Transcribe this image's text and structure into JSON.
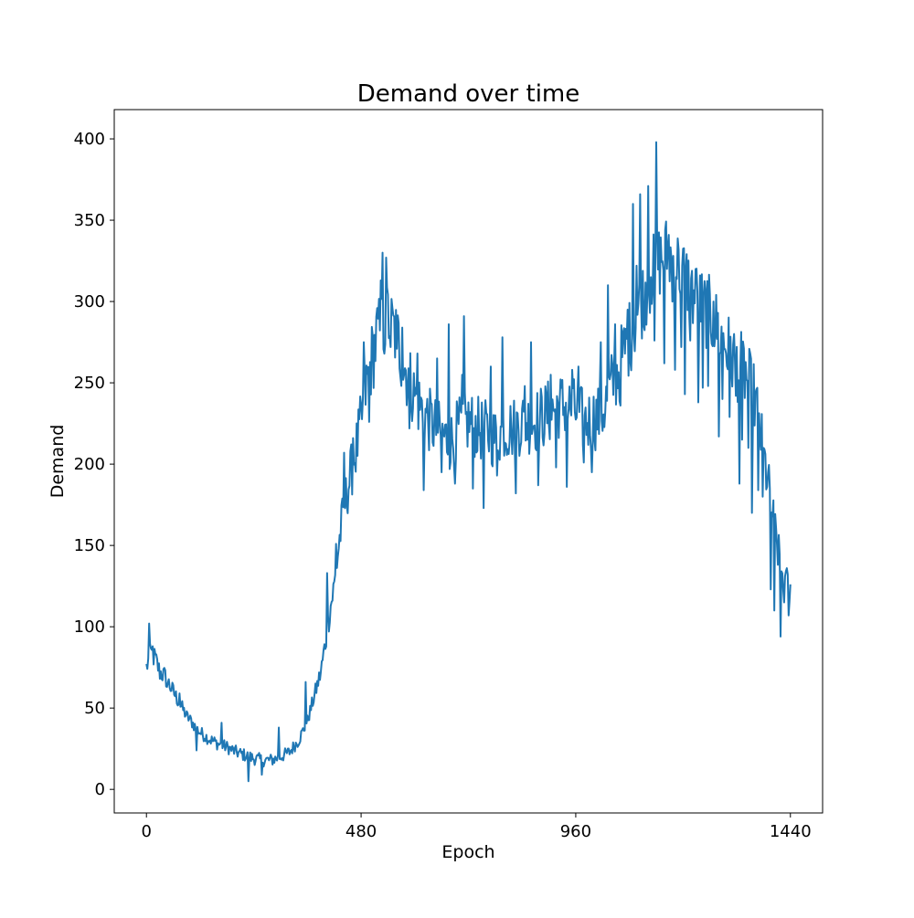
{
  "chart_data": {
    "type": "line",
    "title": "Demand over time",
    "xlabel": "Epoch",
    "ylabel": "Demand",
    "xlim": [
      -72,
      1512
    ],
    "ylim": [
      -14.5,
      418
    ],
    "xticks": [
      0,
      480,
      960,
      1440
    ],
    "yticks": [
      0,
      50,
      100,
      150,
      200,
      250,
      300,
      350,
      400
    ],
    "xtick_labels": [
      "0",
      "480",
      "960",
      "1440"
    ],
    "ytick_labels": [
      "0",
      "50",
      "100",
      "150",
      "200",
      "250",
      "300",
      "350",
      "400"
    ],
    "grid": false,
    "legend": "none",
    "series": [
      {
        "color": "#1f77b4",
        "anchors": [
          [
            0,
            75
          ],
          [
            10,
            84
          ],
          [
            20,
            80
          ],
          [
            30,
            72
          ],
          [
            40,
            70
          ],
          [
            50,
            65
          ],
          [
            60,
            60
          ],
          [
            70,
            55
          ],
          [
            80,
            50
          ],
          [
            90,
            45
          ],
          [
            100,
            42
          ],
          [
            110,
            38
          ],
          [
            120,
            35
          ],
          [
            140,
            31
          ],
          [
            160,
            28
          ],
          [
            180,
            26
          ],
          [
            200,
            23
          ],
          [
            220,
            21
          ],
          [
            240,
            19
          ],
          [
            260,
            18
          ],
          [
            280,
            18
          ],
          [
            300,
            20
          ],
          [
            320,
            23
          ],
          [
            340,
            30
          ],
          [
            360,
            42
          ],
          [
            370,
            52
          ],
          [
            380,
            62
          ],
          [
            390,
            72
          ],
          [
            400,
            90
          ],
          [
            410,
            110
          ],
          [
            420,
            125
          ],
          [
            430,
            150
          ],
          [
            440,
            170
          ],
          [
            450,
            185
          ],
          [
            460,
            198
          ],
          [
            470,
            210
          ],
          [
            480,
            225
          ],
          [
            490,
            245
          ],
          [
            500,
            260
          ],
          [
            510,
            272
          ],
          [
            520,
            280
          ],
          [
            530,
            285
          ],
          [
            540,
            290
          ],
          [
            550,
            283
          ],
          [
            560,
            278
          ],
          [
            570,
            268
          ],
          [
            580,
            258
          ],
          [
            590,
            250
          ],
          [
            600,
            242
          ],
          [
            620,
            232
          ],
          [
            640,
            224
          ],
          [
            660,
            218
          ],
          [
            680,
            214
          ],
          [
            700,
            222
          ],
          [
            720,
            226
          ],
          [
            740,
            222
          ],
          [
            760,
            220
          ],
          [
            780,
            216
          ],
          [
            800,
            222
          ],
          [
            820,
            222
          ],
          [
            840,
            226
          ],
          [
            860,
            226
          ],
          [
            880,
            228
          ],
          [
            900,
            232
          ],
          [
            920,
            236
          ],
          [
            940,
            236
          ],
          [
            960,
            232
          ],
          [
            980,
            226
          ],
          [
            1000,
            228
          ],
          [
            1020,
            232
          ],
          [
            1040,
            248
          ],
          [
            1060,
            262
          ],
          [
            1080,
            278
          ],
          [
            1100,
            295
          ],
          [
            1120,
            310
          ],
          [
            1140,
            322
          ],
          [
            1160,
            330
          ],
          [
            1180,
            325
          ],
          [
            1200,
            318
          ],
          [
            1220,
            305
          ],
          [
            1240,
            298
          ],
          [
            1260,
            292
          ],
          [
            1280,
            282
          ],
          [
            1300,
            270
          ],
          [
            1320,
            262
          ],
          [
            1340,
            255
          ],
          [
            1360,
            240
          ],
          [
            1370,
            225
          ],
          [
            1380,
            205
          ],
          [
            1390,
            188
          ],
          [
            1400,
            170
          ],
          [
            1410,
            150
          ],
          [
            1420,
            135
          ],
          [
            1430,
            125
          ],
          [
            1440,
            120
          ]
        ],
        "spikes": [
          [
            6,
            102
          ],
          [
            14,
            88
          ],
          [
            46,
            63
          ],
          [
            74,
            59
          ],
          [
            112,
            24
          ],
          [
            168,
            41
          ],
          [
            228,
            5
          ],
          [
            258,
            9
          ],
          [
            296,
            38
          ],
          [
            356,
            66
          ],
          [
            404,
            133
          ],
          [
            424,
            151
          ],
          [
            442,
            207
          ],
          [
            462,
            216
          ],
          [
            486,
            275
          ],
          [
            498,
            226
          ],
          [
            516,
            296
          ],
          [
            524,
            313
          ],
          [
            528,
            330
          ],
          [
            536,
            327
          ],
          [
            546,
            272
          ],
          [
            560,
            271
          ],
          [
            572,
            284
          ],
          [
            588,
            222
          ],
          [
            606,
            268
          ],
          [
            620,
            184
          ],
          [
            650,
            265
          ],
          [
            660,
            195
          ],
          [
            676,
            286
          ],
          [
            690,
            188
          ],
          [
            706,
            255
          ],
          [
            710,
            291
          ],
          [
            730,
            185
          ],
          [
            754,
            173
          ],
          [
            770,
            260
          ],
          [
            784,
            193
          ],
          [
            796,
            278
          ],
          [
            816,
            220
          ],
          [
            826,
            182
          ],
          [
            846,
            248
          ],
          [
            860,
            275
          ],
          [
            876,
            187
          ],
          [
            904,
            255
          ],
          [
            916,
            198
          ],
          [
            940,
            186
          ],
          [
            952,
            258
          ],
          [
            966,
            260
          ],
          [
            978,
            201
          ],
          [
            996,
            195
          ],
          [
            1016,
            275
          ],
          [
            1032,
            310
          ],
          [
            1048,
            286
          ],
          [
            1060,
            236
          ],
          [
            1076,
            295
          ],
          [
            1088,
            360
          ],
          [
            1096,
            322
          ],
          [
            1104,
            366
          ],
          [
            1112,
            285
          ],
          [
            1122,
            371
          ],
          [
            1128,
            315
          ],
          [
            1136,
            276
          ],
          [
            1140,
            398
          ],
          [
            1158,
            262
          ],
          [
            1168,
            341
          ],
          [
            1176,
            300
          ],
          [
            1182,
            258
          ],
          [
            1190,
            332
          ],
          [
            1196,
            272
          ],
          [
            1204,
            243
          ],
          [
            1216,
            276
          ],
          [
            1228,
            320
          ],
          [
            1234,
            238
          ],
          [
            1244,
            247
          ],
          [
            1256,
            248
          ],
          [
            1268,
            300
          ],
          [
            1280,
            217
          ],
          [
            1288,
            240
          ],
          [
            1304,
            229
          ],
          [
            1318,
            242
          ],
          [
            1326,
            188
          ],
          [
            1332,
            215
          ],
          [
            1346,
            210
          ],
          [
            1354,
            170
          ],
          [
            1368,
            184
          ],
          [
            1378,
            180
          ],
          [
            1396,
            123
          ],
          [
            1404,
            110
          ],
          [
            1418,
            94
          ],
          [
            1426,
            115
          ],
          [
            1432,
            136
          ],
          [
            1436,
            107
          ]
        ]
      }
    ]
  }
}
